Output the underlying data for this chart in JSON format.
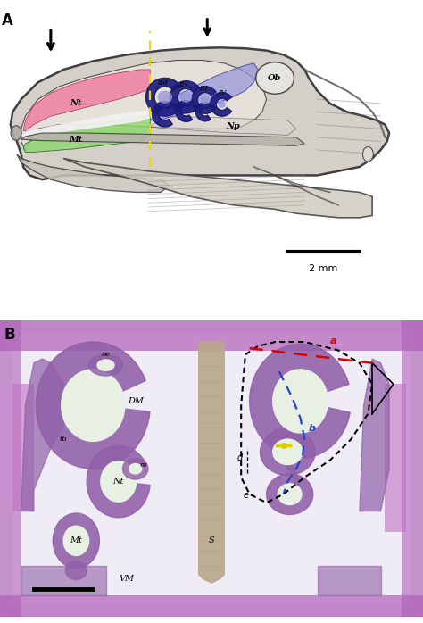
{
  "fig_width": 4.74,
  "fig_height": 6.98,
  "bg_color": "#ffffff",
  "panel_A_label": "A",
  "panel_B_label": "B",
  "scale_bar_A": "2 mm",
  "skull_fill": "#d4cfc8",
  "skull_edge": "#404040",
  "inner_fill": "#e8e4dc",
  "pink_color": "#f080a0",
  "green_color": "#90d870",
  "light_blue_color": "#9898d8",
  "dark_blue_color": "#1a1a7a",
  "ob_fill": "#e8e6e0",
  "white_airway": "#f8f8f8",
  "jaw_fill": "#ddd8cc",
  "jaw_fill2": "#ccc8bc",
  "yellow_line": "#e8d800",
  "arrow_color": "#111111",
  "font_size_panel": 12,
  "font_size_label": 7,
  "hist_bg": "#f0ecf4",
  "hist_tissue_purple": "#9060a8",
  "hist_tissue_dark": "#6040a0",
  "hist_open": "#e8f0e4",
  "hist_septum": "#b8a888",
  "red_line": "#dd0000",
  "blue_line": "#2244cc",
  "yellow_marker": "#ddcc00"
}
